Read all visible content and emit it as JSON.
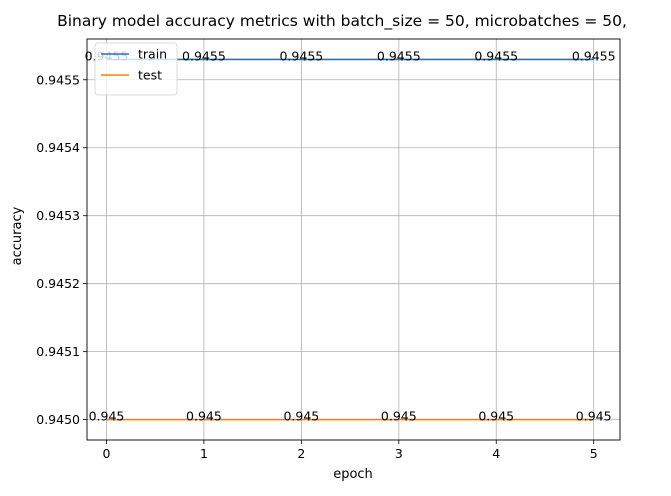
{
  "chart_data": {
    "type": "line",
    "title": "Binary model accuracy metrics with batch_size = 50, microbatches = 50,",
    "xlabel": "epoch",
    "ylabel": "accuracy",
    "x": [
      0,
      1,
      2,
      3,
      4,
      5
    ],
    "xticks": [
      "0",
      "1",
      "2",
      "3",
      "4",
      "5"
    ],
    "yticks": [
      {
        "value": 0.945,
        "label": "0.9450"
      },
      {
        "value": 0.9451,
        "label": "0.9451"
      },
      {
        "value": 0.9452,
        "label": "0.9452"
      },
      {
        "value": 0.9453,
        "label": "0.9453"
      },
      {
        "value": 0.9454,
        "label": "0.9454"
      },
      {
        "value": 0.9455,
        "label": "0.9455"
      }
    ],
    "xlim": [
      -0.2,
      5.27
    ],
    "ylim": [
      0.94497,
      0.94556
    ],
    "grid": true,
    "legend_position": "upper-left",
    "series": [
      {
        "name": "train",
        "color": "#1f77b4",
        "values": [
          0.94553,
          0.94553,
          0.94553,
          0.94553,
          0.94553,
          0.94553
        ],
        "labels": [
          "0.9455",
          "0.9455",
          "0.9455",
          "0.9455",
          "0.9455",
          "0.9455"
        ]
      },
      {
        "name": "test",
        "color": "#ff7f0e",
        "values": [
          0.945,
          0.945,
          0.945,
          0.945,
          0.945,
          0.945
        ],
        "labels": [
          "0.945",
          "0.945",
          "0.945",
          "0.945",
          "0.945",
          "0.945"
        ]
      }
    ]
  }
}
